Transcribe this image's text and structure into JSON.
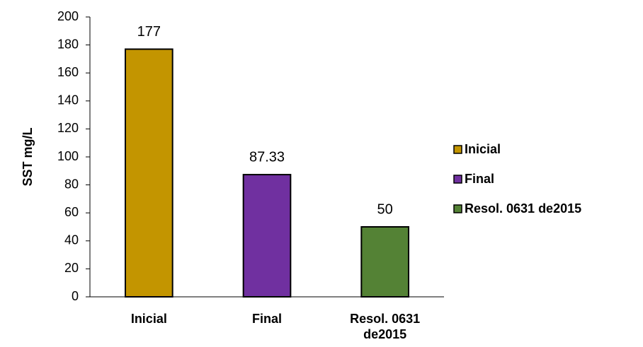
{
  "chart_data": {
    "type": "bar",
    "ylabel": "SST mg/L",
    "categories": [
      "Inicial",
      "Final",
      "Resol. 0631 de2015"
    ],
    "values": [
      177,
      87.33,
      50
    ],
    "colors": [
      "#c39500",
      "#7030a0",
      "#548235"
    ],
    "ylim": [
      0,
      200
    ],
    "yticks": [
      0,
      20,
      40,
      60,
      80,
      100,
      120,
      140,
      160,
      180,
      200
    ],
    "legend": "right",
    "grid": false
  }
}
